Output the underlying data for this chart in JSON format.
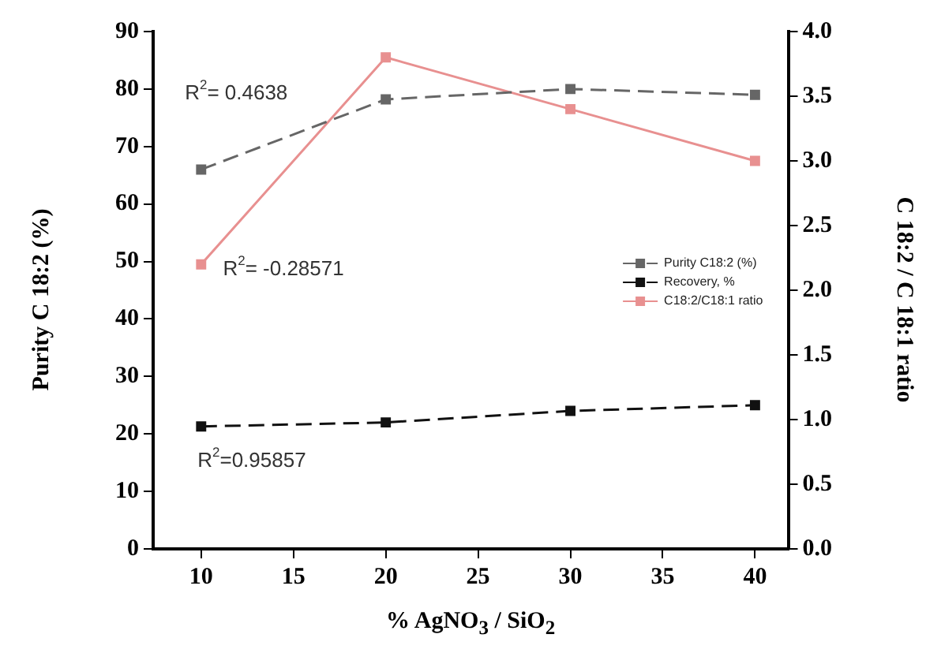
{
  "chart_data": {
    "type": "line",
    "xlabel": "% AgNO$_{3}$ / SiO$_{2}$",
    "ylabel": "Purity C 18:2 (%)",
    "y2label": "C 18:2 / C 18:1 ratio",
    "x": [
      10,
      20,
      30,
      40
    ],
    "xlim": [
      7.4,
      41.8
    ],
    "xticks": [
      10,
      15,
      20,
      25,
      30,
      35,
      40
    ],
    "ylim": [
      0,
      90
    ],
    "yticks": [
      0,
      10,
      20,
      30,
      40,
      50,
      60,
      70,
      80,
      90
    ],
    "y2lim": [
      0,
      4
    ],
    "y2ticks": [
      {
        "value": 0,
        "label": "0.0"
      },
      {
        "value": 0.5,
        "label": "0.5"
      },
      {
        "value": 1,
        "label": "1.0"
      },
      {
        "value": 1.5,
        "label": "1.5"
      },
      {
        "value": 2,
        "label": "2.0"
      },
      {
        "value": 2.5,
        "label": "2.5"
      },
      {
        "value": 3,
        "label": "3.0"
      },
      {
        "value": 3.5,
        "label": "3.5"
      },
      {
        "value": 4,
        "label": "4.0"
      }
    ],
    "marker": "square",
    "grid": false,
    "legend": "right",
    "series": [
      {
        "name": "Purity C18:2 (%)",
        "color": "#666666",
        "line_style": "dashed",
        "values": [
          66,
          78.2,
          80,
          79
        ]
      },
      {
        "name": "Recovery, %",
        "color": "#111111",
        "line_style": "dashed",
        "values": [
          21.3,
          22,
          24,
          25
        ]
      },
      {
        "name": "C18:2/C18:1 ratio",
        "color": "#e89090",
        "line_style": "solid",
        "axis": "y2",
        "values": [
          2.2,
          3.8,
          3.4,
          3.0
        ]
      }
    ],
    "annotations": [
      "R$^{2}$= 0.4638",
      "R$^{2}$= -0.28571",
      "R$^{2}$=0.95857"
    ]
  }
}
